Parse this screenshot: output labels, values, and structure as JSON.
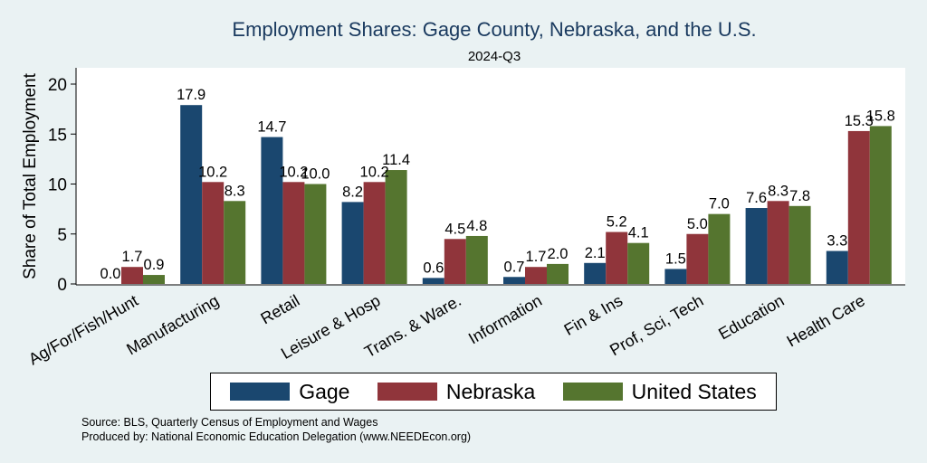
{
  "chart_data": {
    "type": "bar",
    "title": "Employment Shares: Gage County, Nebraska, and the U.S.",
    "subtitle": "2024-Q3",
    "xlabel": "",
    "ylabel": "Share of Total Employment",
    "ylim": [
      0,
      21.5
    ],
    "yticks": [
      0,
      5,
      10,
      15,
      20
    ],
    "grid": false,
    "legend_position": "bottom",
    "categories": [
      "Ag/For/Fish/Hunt",
      "Manufacturing",
      "Retail",
      "Leisure & Hosp",
      "Trans. & Ware.",
      "Information",
      "Fin & Ins",
      "Prof, Sci, Tech",
      "Education",
      "Health Care"
    ],
    "series": [
      {
        "name": "Gage",
        "color": "#1a476f",
        "values": [
          0.0,
          17.9,
          14.7,
          8.2,
          0.6,
          0.7,
          2.1,
          1.5,
          7.6,
          3.3
        ]
      },
      {
        "name": "Nebraska",
        "color": "#90353b",
        "values": [
          1.7,
          10.2,
          10.2,
          10.2,
          4.5,
          1.7,
          5.2,
          5.0,
          8.3,
          15.3
        ]
      },
      {
        "name": "United States",
        "color": "#55752f",
        "values": [
          0.9,
          8.3,
          10.0,
          11.4,
          4.8,
          2.0,
          4.1,
          7.0,
          7.8,
          15.8
        ]
      }
    ],
    "value_labels": [
      [
        "0.0",
        "17.9",
        "14.7",
        "8.2",
        "0.6",
        "0.7",
        "2.1",
        "1.5",
        "7.6",
        "3.3"
      ],
      [
        "1.7",
        "10.2",
        "10.2",
        "10.2",
        "4.5",
        "1.7",
        "5.2",
        "5.0",
        "8.3",
        "15.3"
      ],
      [
        "0.9",
        "8.3",
        "10.0",
        "11.4",
        "4.8",
        "2.0",
        "4.1",
        "7.0",
        "7.8",
        "15.8"
      ]
    ]
  },
  "legend": {
    "gage": "Gage",
    "nebraska": "Nebraska",
    "us": "United States"
  },
  "colors": {
    "gage": "#1a476f",
    "nebraska": "#90353b",
    "us": "#55752f",
    "title": "#1a3a5f",
    "background": "#eaf2f3"
  },
  "footer": {
    "source": "Source: BLS, Quarterly Census of Employment and Wages",
    "produced": "Produced by: National Economic Education Delegation (www.NEEDEcon.org)"
  }
}
